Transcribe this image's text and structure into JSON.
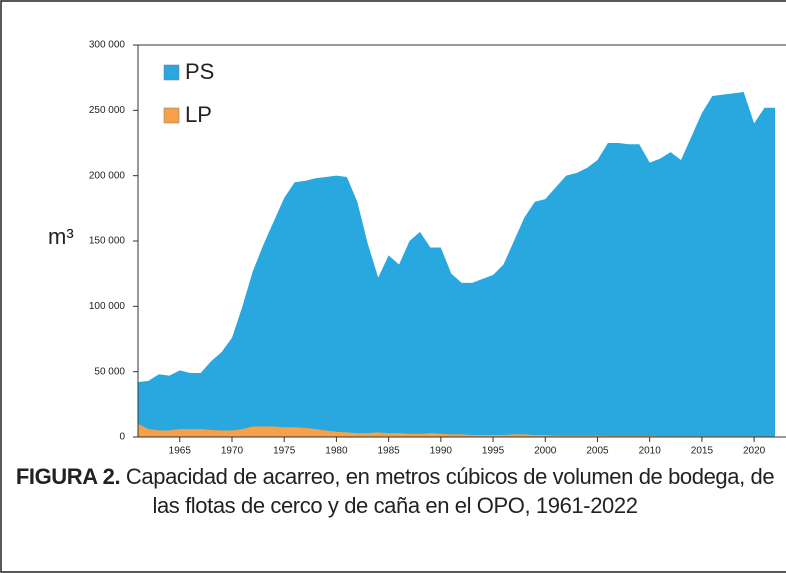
{
  "chart_data": {
    "type": "area",
    "x": [
      1961,
      1962,
      1963,
      1964,
      1965,
      1966,
      1967,
      1968,
      1969,
      1970,
      1971,
      1972,
      1973,
      1974,
      1975,
      1976,
      1977,
      1978,
      1979,
      1980,
      1981,
      1982,
      1983,
      1984,
      1985,
      1986,
      1987,
      1988,
      1989,
      1990,
      1991,
      1992,
      1993,
      1994,
      1995,
      1996,
      1997,
      1998,
      1999,
      2000,
      2001,
      2002,
      2003,
      2004,
      2005,
      2006,
      2007,
      2008,
      2009,
      2010,
      2011,
      2012,
      2013,
      2014,
      2015,
      2016,
      2017,
      2018,
      2019,
      2020,
      2021,
      2022
    ],
    "series": [
      {
        "name": "PS",
        "color": "#29a8e0",
        "values": [
          42000,
          43000,
          48000,
          47000,
          51000,
          49000,
          49000,
          58000,
          65000,
          76000,
          100000,
          127000,
          147000,
          165000,
          183000,
          195000,
          196000,
          198000,
          199000,
          200000,
          199000,
          180000,
          148000,
          122000,
          139000,
          132000,
          150000,
          157000,
          145000,
          145000,
          125000,
          118000,
          118000,
          121000,
          124000,
          132000,
          150000,
          168000,
          180000,
          182000,
          191000,
          200000,
          202000,
          206000,
          212000,
          225000,
          225000,
          224000,
          224000,
          210000,
          213000,
          218000,
          212000,
          230000,
          248000,
          261000,
          262000,
          263000,
          264000,
          240000,
          252000,
          252000
        ]
      },
      {
        "name": "LP",
        "color": "#f7a04a",
        "values": [
          10000,
          6000,
          5000,
          5000,
          6000,
          6000,
          6000,
          5500,
          5000,
          5000,
          6000,
          8000,
          8000,
          8000,
          7500,
          7500,
          7000,
          6000,
          5000,
          4000,
          3500,
          3000,
          3000,
          3500,
          3000,
          3000,
          2500,
          2500,
          3000,
          2500,
          2000,
          2000,
          1500,
          1500,
          1500,
          1500,
          2000,
          2000,
          1500,
          1500,
          1000,
          1000,
          1000,
          1000,
          1000,
          800,
          800,
          800,
          800,
          800,
          600,
          600,
          600,
          600,
          600,
          600,
          600,
          600,
          600,
          600,
          500,
          500
        ]
      }
    ],
    "xlim": [
      1961,
      2022
    ],
    "xticks": [
      1965,
      1970,
      1975,
      1980,
      1985,
      1990,
      1995,
      2000,
      2005,
      2010,
      2015,
      2020
    ],
    "ylim": [
      0,
      300000
    ],
    "yticks": [
      0,
      {
        "value": 50000,
        "label": "50 000"
      },
      {
        "value": 100000,
        "label": "100 000"
      },
      {
        "value": 150000,
        "label": "150 000"
      },
      {
        "value": 200000,
        "label": "200 000"
      },
      {
        "value": 250000,
        "label": "250 000"
      },
      {
        "value": 300000,
        "label": "300 000"
      }
    ],
    "ylabel": "m³",
    "legend": "top-left",
    "caption_label": "FIGURA 2.",
    "caption": "Capacidad de acarreo, en metros cúbicos de volumen de bodega, de las flotas de cerco y de caña en el OPO, 1961-2022"
  }
}
